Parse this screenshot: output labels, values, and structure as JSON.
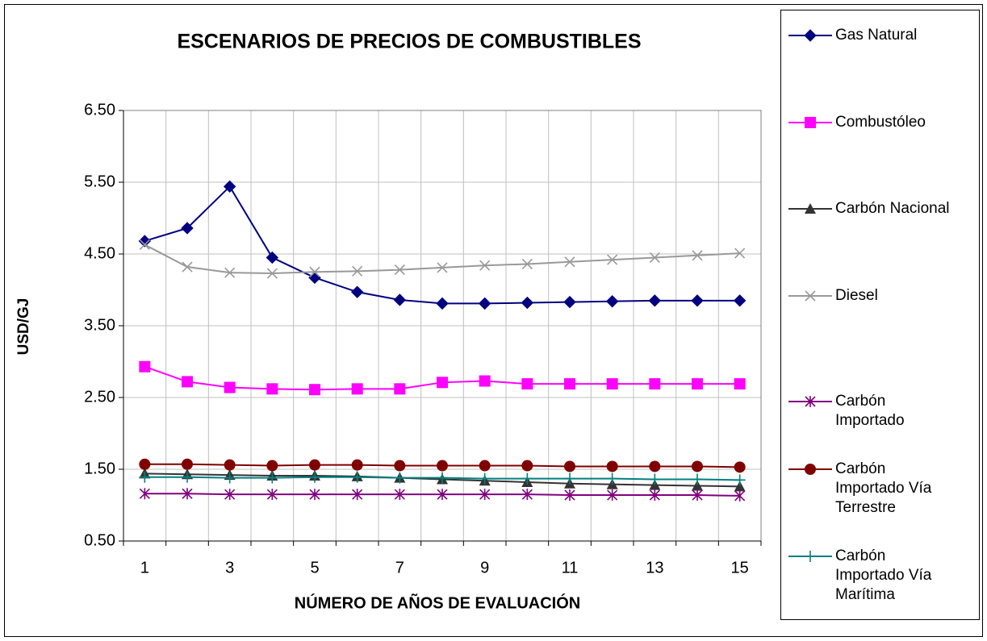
{
  "chart_data": {
    "type": "line",
    "title": "ESCENARIOS DE PRECIOS DE COMBUSTIBLES",
    "x_label": "NÚMERO DE AÑOS DE EVALUACIÓN",
    "y_label": "USD/GJ",
    "categories": [
      "1",
      null,
      "3",
      null,
      "5",
      null,
      "7",
      null,
      "9",
      null,
      "11",
      null,
      "13",
      null,
      "15"
    ],
    "ylim": [
      0.5,
      6.5
    ],
    "yticks": [
      {
        "value": 0.5,
        "label": "0.50"
      },
      {
        "value": 1.5,
        "label": "1.50"
      },
      {
        "value": 2.5,
        "label": "2.50"
      },
      {
        "value": 3.5,
        "label": "3.50"
      },
      {
        "value": 4.5,
        "label": "4.50"
      },
      {
        "value": 5.5,
        "label": "5.50"
      },
      {
        "value": 6.5,
        "label": "6.50"
      }
    ],
    "grid": true,
    "legend": "right",
    "series": [
      {
        "name": "Gas Natural",
        "color": "#000080",
        "marker": "diamond",
        "values": [
          4.68,
          4.86,
          5.44,
          4.45,
          4.17,
          3.97,
          3.86,
          3.81,
          3.81,
          3.82,
          3.83,
          3.84,
          3.85,
          3.85,
          3.85
        ]
      },
      {
        "name": "Combustóleo",
        "color": "#ff00ff",
        "marker": "square",
        "values": [
          2.93,
          2.72,
          2.64,
          2.62,
          2.61,
          2.62,
          2.62,
          2.71,
          2.73,
          2.69,
          2.69,
          2.69,
          2.69,
          2.69,
          2.69
        ]
      },
      {
        "name": "Carbón Nacional",
        "color": "#333333",
        "marker": "triangle",
        "values": [
          1.44,
          1.43,
          1.42,
          1.41,
          1.41,
          1.4,
          1.38,
          1.36,
          1.34,
          1.32,
          1.3,
          1.29,
          1.28,
          1.27,
          1.26
        ]
      },
      {
        "name": "Diesel",
        "color": "#999999",
        "marker": "x",
        "values": [
          4.63,
          4.32,
          4.24,
          4.23,
          4.25,
          4.26,
          4.28,
          4.31,
          4.34,
          4.36,
          4.39,
          4.42,
          4.45,
          4.48,
          4.51
        ]
      },
      {
        "name": "Carbón Importado",
        "color": "#800080",
        "marker": "star",
        "values": [
          1.16,
          1.16,
          1.15,
          1.15,
          1.15,
          1.15,
          1.15,
          1.15,
          1.15,
          1.15,
          1.14,
          1.14,
          1.14,
          1.14,
          1.13
        ]
      },
      {
        "name": "Carbón Importado Vía Terrestre",
        "color": "#800000",
        "marker": "circle",
        "values": [
          1.57,
          1.57,
          1.56,
          1.55,
          1.56,
          1.56,
          1.55,
          1.55,
          1.55,
          1.55,
          1.54,
          1.54,
          1.54,
          1.54,
          1.53
        ]
      },
      {
        "name": "Carbón Importado Vía Marítima",
        "color": "#008080",
        "marker": "plus",
        "values": [
          1.39,
          1.39,
          1.38,
          1.38,
          1.39,
          1.39,
          1.38,
          1.38,
          1.37,
          1.37,
          1.37,
          1.37,
          1.36,
          1.36,
          1.35
        ]
      }
    ]
  }
}
